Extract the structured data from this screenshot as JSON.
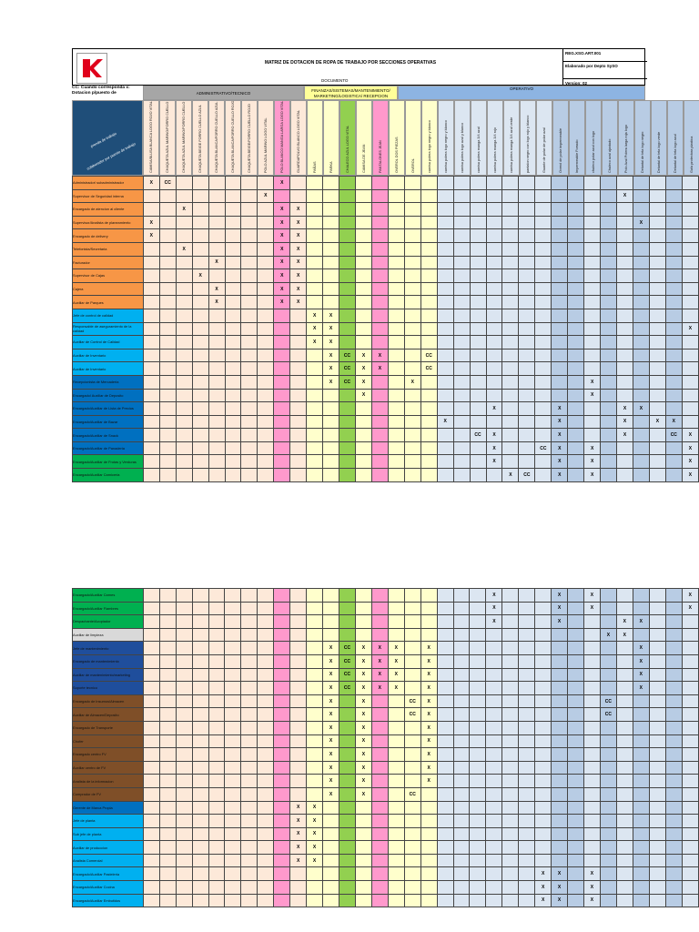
{
  "header": {
    "title": "MATRIZ DE DOTACION DE ROPA DE TRABAJO POR SECCIONES OPERATIVAS",
    "document_label": "DOCUMENTO",
    "code": "REG.XSO.ART.001",
    "author": "Elaborado por Depto SySO",
    "version": "Version: 02"
  },
  "cc_label": "CC: Cuando corresponda x: Dotacion p/puesto de",
  "diagonal": {
    "a": "prenda de trabajo",
    "b": "colaborador por puesto de trabajo"
  },
  "groups": [
    {
      "label": "ADMINISTRATIVO/TECNICO"
    },
    {
      "label": "FINANZAS/SISTEMAS/MANTENIMIENTO/ MARKETING/LOGISTICA/ RECEPCION"
    },
    {
      "label": "OPERATIVO"
    }
  ],
  "columns": [
    "CAMISA/BLUSA BLANCA LOGO ROJO VITAL",
    "CHAQUETA AZUL MARINO/FORRO CUELLO AZUL",
    "CHAQUETA AZUL MARINO/FORRO CUELLO ROJO",
    "CHAQUETA BEIGE FORRO CUELLO AZUL",
    "CHAQUETA BLANCA/FORRO CUELLO AZUL",
    "CHAQUETA BLANCA/FORRO CUELLO ROJO",
    "CHAQUETA BEIGE/FORRO CUELLO ROJO",
    "POLO AZUL MARINO LOGO VITAL",
    "POLO BLANCO MANGA LARGA LOGO VITAL",
    "GUARDAPOLVO BLANCO LOGO VITAL",
    "PAÑAS",
    "PARKA",
    "CHALECO AZUL LOGO VITAL",
    "CAMISA DE JEAN",
    "PANTALONES JEAN",
    "OVEROL DOS PIEZAS",
    "OVEROL",
    "camisa polera logo negro y blanco",
    "camisa polera logo negro y blanco",
    "camisa polera logo azul y blanco",
    "camisa polera manga 3/4 azul",
    "camisa polera manga 3/4 rojo",
    "camisa polera manga 3/4 azul verde",
    "pantalon negro con logo rojo y blanco",
    "Guante de polar de polar azul",
    "Overol de polar impermeable",
    "Impermeable Forrado",
    "chaleco polar azul con logo",
    "Chaleco azul ajustado",
    "Polo Azul Polera larga roja logo",
    "Delantal de tela logo negro",
    "Delantal de tela logo verde",
    "Delantal de tela logo azul",
    "Gafa protectora plastica"
  ],
  "rows": [
    {
      "n": "1",
      "label": "Administrador/ subadministrador",
      "color": "#f79646",
      "marks": {
        "0": "X",
        "1": "CC",
        "8": "X"
      }
    },
    {
      "n": "2",
      "label": "Supervisor de Seguridad interna",
      "color": "#f79646",
      "marks": {
        "7": "X",
        "29": "X"
      }
    },
    {
      "n": "3",
      "label": "Encargado de atencion al cliente",
      "color": "#f79646",
      "marks": {
        "2": "X",
        "8": "X",
        "9": "X"
      }
    },
    {
      "n": "4",
      "label": "Supervisor/Analista de planeamiento",
      "color": "#f79646",
      "marks": {
        "0": "X",
        "8": "X",
        "9": "X",
        "30": "X"
      }
    },
    {
      "n": "5",
      "label": "Encargado de delivery",
      "color": "#f79646",
      "marks": {
        "0": "X",
        "8": "X",
        "9": "X"
      }
    },
    {
      "n": "5",
      "label": "Telefonista/Secretaria",
      "color": "#f79646",
      "marks": {
        "2": "X",
        "8": "X",
        "9": "X"
      }
    },
    {
      "n": "6",
      "label": "Facturador",
      "color": "#f79646",
      "marks": {
        "4": "X",
        "8": "X",
        "9": "X"
      }
    },
    {
      "n": "7",
      "label": "Supervisor de Cajas",
      "color": "#f79646",
      "marks": {
        "3": "X",
        "8": "X",
        "9": "X"
      }
    },
    {
      "n": "8",
      "label": "Cajera",
      "color": "#f79646",
      "marks": {
        "4": "X",
        "8": "X",
        "9": "X"
      }
    },
    {
      "n": "9",
      "label": "Auxiliar de Parques",
      "color": "#f79646",
      "marks": {
        "4": "X",
        "8": "X",
        "9": "X"
      }
    },
    {
      "n": "10",
      "label": "Jefe de control de calidad",
      "color": "#00b0f0",
      "marks": {
        "10": "X",
        "11": "X"
      }
    },
    {
      "n": "11",
      "label": "Responsable de aseguramiento de la calidad",
      "color": "#00b0f0",
      "marks": {
        "10": "X",
        "11": "X",
        "33": "X"
      }
    },
    {
      "n": "12",
      "label": "Auxiliar de Control de Calidad",
      "color": "#00b0f0",
      "marks": {
        "10": "X",
        "11": "X"
      }
    },
    {
      "n": "13",
      "label": "Auxiliar de Inventario",
      "color": "#00b0f0",
      "marks": {
        "11": "X",
        "12": "CC",
        "13": "X",
        "14": "X",
        "17": "CC"
      }
    },
    {
      "n": "14",
      "label": "Auxiliar de Inventario",
      "color": "#00b0f0",
      "marks": {
        "11": "X",
        "12": "CC",
        "13": "X",
        "14": "X",
        "17": "CC"
      }
    },
    {
      "n": "15",
      "label": "Recepcionista de Mercaderia",
      "color": "#0070c0",
      "marks": {
        "11": "X",
        "12": "CC",
        "13": "X",
        "16": "X",
        "27": "X"
      }
    },
    {
      "n": "16",
      "label": "Encargado/ Auxiliar de Deposito",
      "color": "#0070c0",
      "marks": {
        "13": "X",
        "27": "X"
      }
    },
    {
      "n": "17",
      "label": "Encargado/Auxiliar de Lista de Precios",
      "color": "#0070c0",
      "marks": {
        "21": "X",
        "25": "X",
        "29": "X",
        "30": "X"
      }
    },
    {
      "n": "18",
      "label": "Encargado/Auxiliar de Bazar",
      "color": "#0070c0",
      "marks": {
        "18": "X",
        "25": "X",
        "29": "X",
        "31": "X",
        "32": "X"
      }
    },
    {
      "n": "19",
      "label": "Encargado/Auxiliar de Snack",
      "color": "#0070c0",
      "marks": {
        "20": "CC",
        "21": "X",
        "25": "X",
        "29": "X",
        "32": "CC",
        "33": "X",
        "34": "X"
      }
    },
    {
      "n": "20",
      "label": "Encargado/Auxiliar de Panaderia",
      "color": "#0070c0",
      "marks": {
        "21": "X",
        "24": "CC",
        "25": "X",
        "27": "X",
        "33": "X",
        "34": "X"
      }
    },
    {
      "n": "21",
      "label": "Encargado/Auxiliar de Frutas y Verduras",
      "color": "#00b050",
      "marks": {
        "21": "X",
        "25": "X",
        "27": "X",
        "33": "X",
        "34": "X"
      }
    },
    {
      "n": "22",
      "label": "Encargado/Auxiliar Carniceria",
      "color": "#00b050",
      "marks": {
        "22": "X",
        "23": "CC",
        "25": "X",
        "27": "X",
        "33": "X",
        "34": "X"
      }
    }
  ],
  "rows2": [
    {
      "n": "23",
      "label": "Encargado/Auxiliar Carnes",
      "color": "#00b050",
      "marks": {
        "21": "X",
        "25": "X",
        "27": "X",
        "33": "X",
        "34": "X"
      }
    },
    {
      "n": "24",
      "label": "Encargado/Auxiliar Fiambres",
      "color": "#00b050",
      "marks": {
        "21": "X",
        "25": "X",
        "27": "X",
        "33": "X",
        "34": "X"
      }
    },
    {
      "n": "25",
      "label": "Despachante/Acopiador",
      "color": "#00b050",
      "marks": {
        "21": "X",
        "25": "X",
        "29": "X",
        "30": "X"
      }
    },
    {
      "n": "26",
      "label": "Auxiliar de limpieza",
      "color": "#d9d9d9",
      "marks": {
        "28": "X",
        "29": "X"
      }
    },
    {
      "n": "27",
      "label": "Jefe de mantenimiento",
      "color": "#1f4e9c",
      "marks": {
        "11": "X",
        "12": "CC",
        "13": "X",
        "14": "X",
        "15": "X",
        "17": "X",
        "30": "X"
      }
    },
    {
      "n": "28",
      "label": "Encargado de mantenimiento",
      "color": "#1f4e9c",
      "marks": {
        "11": "X",
        "12": "CC",
        "13": "X",
        "14": "X",
        "15": "X",
        "17": "X",
        "30": "X"
      }
    },
    {
      "n": "29",
      "label": "Auxiliar de mantenimiento/marketing",
      "color": "#1f4e9c",
      "marks": {
        "11": "X",
        "12": "CC",
        "13": "X",
        "14": "X",
        "15": "X",
        "17": "X",
        "30": "X"
      }
    },
    {
      "n": "30",
      "label": "Soporte tecnico",
      "color": "#1f4e9c",
      "marks": {
        "11": "X",
        "12": "CC",
        "13": "X",
        "14": "X",
        "15": "X",
        "17": "X",
        "30": "X"
      }
    },
    {
      "n": "31",
      "label": "Encargado de Insumos/Almacen",
      "color": "#7f4f28",
      "marks": {
        "11": "X",
        "13": "X",
        "16": "CC",
        "17": "X",
        "28": "CC"
      }
    },
    {
      "n": "32",
      "label": "Auxiliar de Almacen/Deposito",
      "color": "#7f4f28",
      "marks": {
        "11": "X",
        "13": "X",
        "16": "CC",
        "17": "X",
        "28": "CC"
      }
    },
    {
      "n": "33",
      "label": "Encargado de Transporte",
      "color": "#7f4f28",
      "marks": {
        "11": "X",
        "13": "X",
        "17": "X"
      }
    },
    {
      "n": "34",
      "label": "Chofer",
      "color": "#7f4f28",
      "marks": {
        "11": "X",
        "13": "X",
        "17": "X"
      }
    },
    {
      "n": "35",
      "label": "Encargado centro FV",
      "color": "#7f4f28",
      "marks": {
        "11": "X",
        "13": "X",
        "17": "X"
      }
    },
    {
      "n": "36",
      "label": "Auxiliar centro de FV",
      "color": "#7f4f28",
      "marks": {
        "11": "X",
        "13": "X",
        "17": "X"
      }
    },
    {
      "n": "37",
      "label": "Analista de la informacion",
      "color": "#7f4f28",
      "marks": {
        "11": "X",
        "13": "X",
        "17": "X"
      }
    },
    {
      "n": "38",
      "label": "Comprador de FV",
      "color": "#7f4f28",
      "marks": {
        "11": "X",
        "13": "X",
        "16": "CC"
      }
    },
    {
      "n": "39",
      "label": "Gerente de Marca Propia",
      "color": "#0070c0",
      "marks": {
        "9": "X",
        "10": "X"
      }
    },
    {
      "n": "40",
      "label": "Jefe de planta",
      "color": "#00b0f0",
      "marks": {
        "9": "X",
        "10": "X"
      }
    },
    {
      "n": "41",
      "label": "Sub jefe de planta",
      "color": "#00b0f0",
      "marks": {
        "9": "X",
        "10": "X"
      }
    },
    {
      "n": "42",
      "label": "Auxiliar de produccion",
      "color": "#00b0f0",
      "marks": {
        "9": "X",
        "10": "X"
      }
    },
    {
      "n": "43",
      "label": "Analista Comercial",
      "color": "#00b0f0",
      "marks": {
        "9": "X",
        "10": "X"
      }
    },
    {
      "n": "44",
      "label": "Encargado/Auxiliar Pasteleria",
      "color": "#00b0f0",
      "marks": {
        "24": "X",
        "25": "X",
        "27": "X",
        "34": "X"
      }
    },
    {
      "n": "45",
      "label": "Encargado/Auxiliar Cocina",
      "color": "#00b0f0",
      "marks": {
        "24": "X",
        "25": "X",
        "27": "X",
        "34": "X"
      }
    },
    {
      "n": "46",
      "label": "Encargado/Auxiliar Embutidos",
      "color": "#00b0f0",
      "marks": {
        "24": "X",
        "25": "X",
        "27": "X",
        "34": "X"
      }
    }
  ],
  "colors": {
    "admin_bg": "#fde9d9",
    "fin_bg": "#ffffcc",
    "oper_a_bg": "#dce6f1",
    "oper_b_bg": "#b8cce4",
    "group_gray": "#a6a6a6",
    "group_yellow": "#ffff99",
    "group_blue": "#8db4e2",
    "green": "#92d050",
    "pink": "#ff99cc"
  }
}
